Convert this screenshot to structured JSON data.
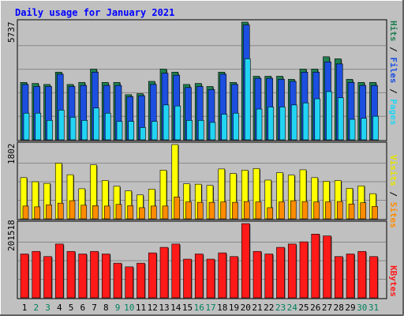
{
  "chart_data": [
    {
      "type": "bar",
      "title": "Daily usage for January 2021",
      "panel": "pages-files-hits",
      "y_max_label": "5737",
      "ylim": [
        0,
        5737
      ],
      "categories": [
        "1",
        "2",
        "3",
        "4",
        "5",
        "6",
        "7",
        "8",
        "9",
        "10",
        "11",
        "12",
        "13",
        "14",
        "15",
        "16",
        "17",
        "18",
        "19",
        "20",
        "21",
        "22",
        "23",
        "24",
        "25",
        "26",
        "27",
        "28",
        "29",
        "30",
        "31"
      ],
      "weekend_days": [
        "2",
        "3",
        "9",
        "10",
        "16",
        "17",
        "23",
        "24",
        "30",
        "31"
      ],
      "series": [
        {
          "name": "Hits",
          "color": "#1f7f4f",
          "values": [
            2800,
            2750,
            2700,
            3300,
            2700,
            2800,
            3450,
            2800,
            2800,
            2200,
            2250,
            2850,
            3450,
            3300,
            2700,
            2750,
            2600,
            3300,
            2800,
            5737,
            3100,
            3100,
            3100,
            2950,
            3450,
            3450,
            4050,
            3950,
            2950,
            2800,
            2800
          ]
        },
        {
          "name": "Files",
          "color": "#1c4fe0",
          "values": [
            2700,
            2600,
            2600,
            3200,
            2600,
            2650,
            3300,
            2650,
            2650,
            2100,
            2150,
            2700,
            3250,
            3150,
            2550,
            2600,
            2450,
            3200,
            2700,
            5600,
            3000,
            3000,
            2950,
            2850,
            3300,
            3300,
            3800,
            3700,
            2800,
            2650,
            2650
          ]
        },
        {
          "name": "Pages",
          "color": "#22d4f4",
          "values": [
            1300,
            1300,
            950,
            1450,
            1100,
            950,
            1550,
            1300,
            900,
            900,
            600,
            900,
            1700,
            1650,
            950,
            950,
            850,
            1250,
            1300,
            3950,
            1500,
            1600,
            1600,
            1700,
            1800,
            2000,
            2350,
            2050,
            1000,
            1050,
            1150
          ]
        }
      ]
    },
    {
      "type": "bar",
      "panel": "visits-sites",
      "y_max_label": "1802",
      "ylim": [
        0,
        1802
      ],
      "series": [
        {
          "name": "Visits",
          "color": "#ffff00",
          "values": [
            1000,
            900,
            860,
            1350,
            1070,
            730,
            1310,
            930,
            790,
            680,
            580,
            720,
            1180,
            1802,
            850,
            840,
            810,
            1210,
            1100,
            1180,
            1220,
            940,
            1120,
            1060,
            1190,
            1000,
            910,
            930,
            740,
            800,
            610
          ]
        },
        {
          "name": "Sites",
          "color": "#ff8c00",
          "values": [
            310,
            290,
            340,
            380,
            440,
            330,
            320,
            310,
            350,
            320,
            270,
            310,
            310,
            530,
            410,
            400,
            400,
            410,
            400,
            420,
            410,
            270,
            410,
            440,
            420,
            410,
            410,
            420,
            360,
            390,
            300
          ]
        }
      ]
    },
    {
      "type": "bar",
      "panel": "kbytes",
      "y_max_label": "201518",
      "ylim": [
        0,
        201518
      ],
      "series": [
        {
          "name": "KBytes",
          "color": "#ff1a1a",
          "values": [
            119000,
            126000,
            112000,
            146000,
            126000,
            119000,
            126000,
            119000,
            94000,
            84000,
            94000,
            122000,
            137000,
            146000,
            105000,
            119000,
            105000,
            122000,
            112000,
            201518,
            126000,
            119000,
            137000,
            146000,
            152000,
            173000,
            168000,
            112000,
            119000,
            126000,
            112000
          ]
        }
      ]
    }
  ],
  "axis_labels": {
    "top_right": [
      "Pages",
      "/",
      "Files",
      "/",
      "Hits"
    ],
    "mid_right": [
      "Sites",
      "/",
      "Visits"
    ],
    "bottom_right": [
      "KBytes"
    ]
  },
  "colors": {
    "background": "#c0c0c0",
    "plot_bg": "#c0c0c0",
    "grid": "#888888",
    "title": "#0000ff",
    "weekday_label": "#000000",
    "weekend_label": "#00805c"
  }
}
